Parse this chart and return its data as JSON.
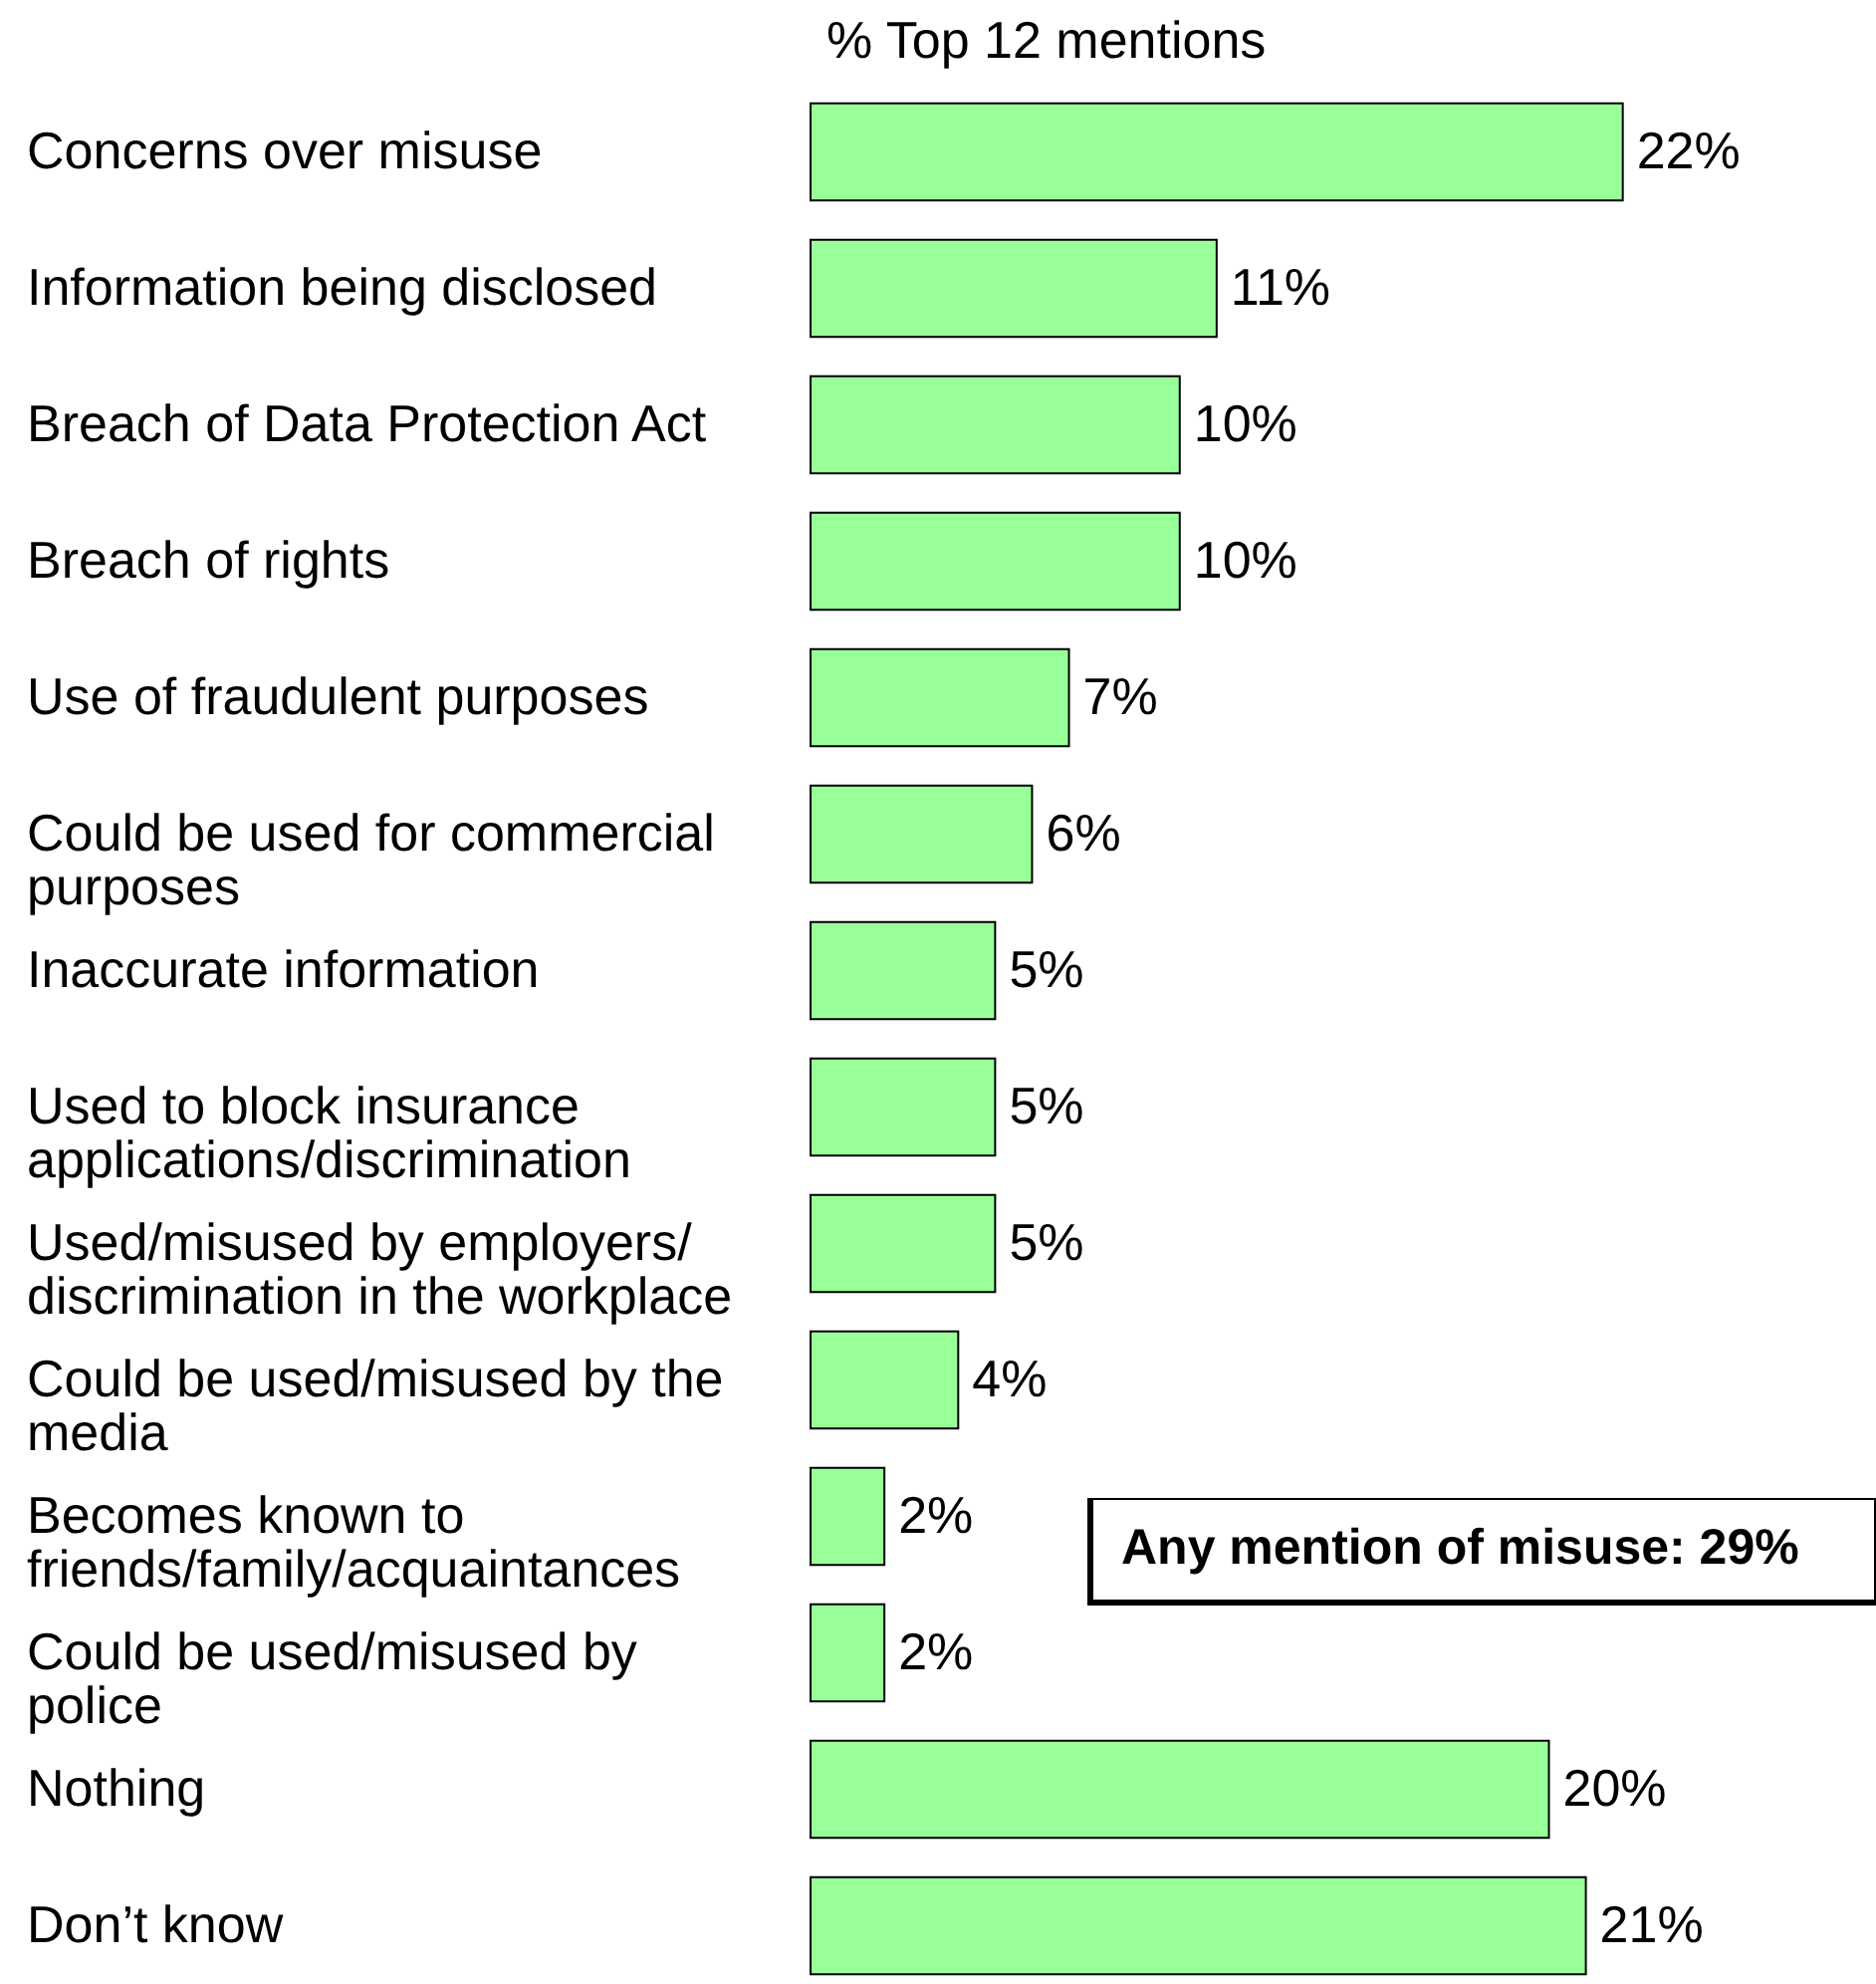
{
  "chart_data": {
    "type": "bar",
    "orientation": "horizontal",
    "title": "% Top 12 mentions",
    "categories": [
      "Concerns over misuse",
      "Information being disclosed",
      "Breach of Data Protection Act",
      "Breach of rights",
      "Use of fraudulent purposes",
      "Could be used for commercial purposes",
      "Inaccurate information",
      "Used to block insurance applications/discrimination",
      "Used/misused by employers/ discrimination in the workplace",
      "Could be used/misused by the media",
      "Becomes known to friends/family/acquaintances",
      "Could be used/misused by police",
      "Nothing",
      "Don’t know"
    ],
    "values": [
      22,
      11,
      10,
      10,
      7,
      6,
      5,
      5,
      5,
      4,
      2,
      2,
      20,
      21
    ],
    "value_labels": [
      "22%",
      "11%",
      "10%",
      "10%",
      "7%",
      "6%",
      "5%",
      "5%",
      "5%",
      "4%",
      "2%",
      "2%",
      "20%",
      "21%"
    ],
    "color": "#99ff99",
    "annotations": [
      "Any mention of misuse: 29%"
    ]
  }
}
